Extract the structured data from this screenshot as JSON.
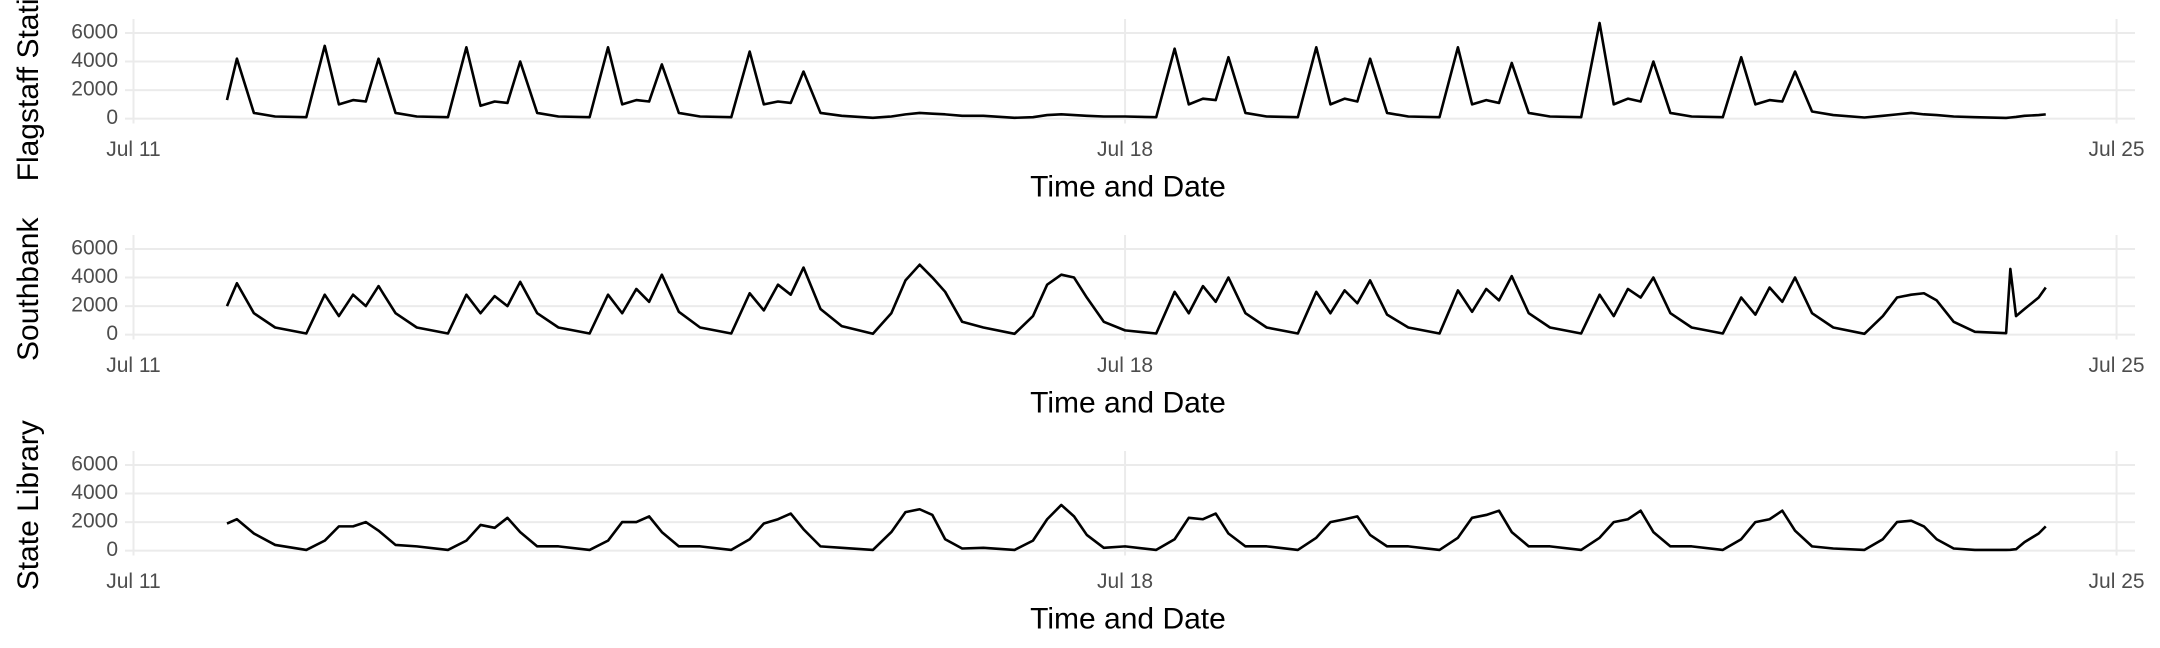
{
  "chart_data": [
    {
      "type": "line",
      "y_label": "Flagstaff Station",
      "x_label": "Time and Date",
      "color": "#000000",
      "grid": true,
      "xlim": [
        10.94,
        25.13
      ],
      "xticks": [
        {
          "value": 11,
          "label": "Jul 11"
        },
        {
          "value": 18,
          "label": "Jul 18"
        },
        {
          "value": 25,
          "label": "Jul 25"
        }
      ],
      "ylim": [
        -340,
        6980
      ],
      "yticks": [
        0,
        2000,
        4000,
        6000
      ],
      "x": [
        11.66,
        11.73,
        11.85,
        12,
        12.22,
        12.35,
        12.45,
        12.55,
        12.64,
        12.73,
        12.85,
        13,
        13.22,
        13.35,
        13.45,
        13.55,
        13.64,
        13.73,
        13.85,
        14,
        14.22,
        14.35,
        14.45,
        14.55,
        14.64,
        14.73,
        14.85,
        15,
        15.22,
        15.35,
        15.45,
        15.55,
        15.64,
        15.73,
        15.85,
        16,
        16.22,
        16.35,
        16.45,
        16.55,
        16.64,
        16.73,
        16.85,
        17,
        17.22,
        17.35,
        17.45,
        17.55,
        17.64,
        17.73,
        17.85,
        18,
        18.22,
        18.35,
        18.45,
        18.55,
        18.64,
        18.73,
        18.85,
        19,
        19.22,
        19.35,
        19.45,
        19.55,
        19.64,
        19.73,
        19.85,
        20,
        20.22,
        20.35,
        20.45,
        20.55,
        20.64,
        20.73,
        20.85,
        21,
        21.22,
        21.35,
        21.45,
        21.55,
        21.64,
        21.73,
        21.85,
        22,
        22.22,
        22.35,
        22.45,
        22.55,
        22.64,
        22.73,
        22.85,
        23,
        23.22,
        23.35,
        23.45,
        23.55,
        23.64,
        23.73,
        23.85,
        24,
        24.22,
        24.25,
        24.29,
        24.35,
        24.45,
        24.5
      ],
      "values": [
        1300,
        4200,
        400,
        150,
        100,
        5100,
        1000,
        1300,
        1200,
        4200,
        400,
        150,
        100,
        5000,
        900,
        1200,
        1100,
        4000,
        400,
        150,
        100,
        5000,
        1000,
        1300,
        1200,
        3800,
        400,
        150,
        100,
        4700,
        1000,
        1200,
        1100,
        3300,
        400,
        200,
        60,
        150,
        300,
        400,
        350,
        300,
        200,
        200,
        60,
        100,
        250,
        300,
        250,
        200,
        150,
        150,
        100,
        4900,
        1000,
        1400,
        1300,
        4300,
        400,
        150,
        100,
        5000,
        1000,
        1400,
        1200,
        4200,
        400,
        150,
        100,
        5000,
        1000,
        1300,
        1100,
        3900,
        400,
        150,
        100,
        6700,
        1000,
        1400,
        1200,
        4000,
        400,
        150,
        100,
        4300,
        1000,
        1300,
        1200,
        3300,
        500,
        250,
        80,
        200,
        300,
        400,
        300,
        250,
        150,
        100,
        50,
        80,
        120,
        200,
        250,
        300
      ]
    },
    {
      "type": "line",
      "y_label": "Southbank",
      "x_label": "Time and Date",
      "color": "#000000",
      "grid": true,
      "xlim": [
        10.94,
        25.13
      ],
      "xticks": [
        {
          "value": 11,
          "label": "Jul 11"
        },
        {
          "value": 18,
          "label": "Jul 18"
        },
        {
          "value": 25,
          "label": "Jul 25"
        }
      ],
      "ylim": [
        -340,
        6980
      ],
      "yticks": [
        0,
        2000,
        4000,
        6000
      ],
      "x": [
        11.66,
        11.73,
        11.85,
        12,
        12.22,
        12.35,
        12.45,
        12.55,
        12.64,
        12.73,
        12.85,
        13,
        13.22,
        13.35,
        13.45,
        13.55,
        13.64,
        13.73,
        13.85,
        14,
        14.22,
        14.35,
        14.45,
        14.55,
        14.64,
        14.73,
        14.85,
        15,
        15.22,
        15.35,
        15.45,
        15.55,
        15.64,
        15.73,
        15.85,
        16,
        16.22,
        16.35,
        16.45,
        16.55,
        16.64,
        16.73,
        16.85,
        17,
        17.22,
        17.35,
        17.45,
        17.55,
        17.64,
        17.73,
        17.85,
        18,
        18.22,
        18.35,
        18.45,
        18.55,
        18.64,
        18.73,
        18.85,
        19,
        19.22,
        19.35,
        19.45,
        19.55,
        19.64,
        19.73,
        19.85,
        20,
        20.22,
        20.35,
        20.45,
        20.55,
        20.64,
        20.73,
        20.85,
        21,
        21.22,
        21.35,
        21.45,
        21.55,
        21.64,
        21.73,
        21.85,
        22,
        22.22,
        22.35,
        22.45,
        22.55,
        22.64,
        22.73,
        22.85,
        23,
        23.22,
        23.35,
        23.45,
        23.55,
        23.64,
        23.73,
        23.85,
        24,
        24.22,
        24.25,
        24.29,
        24.35,
        24.45,
        24.5
      ],
      "values": [
        2000,
        3600,
        1500,
        500,
        80,
        2800,
        1300,
        2800,
        2000,
        3400,
        1500,
        500,
        80,
        2800,
        1500,
        2700,
        2000,
        3700,
        1500,
        500,
        80,
        2800,
        1500,
        3200,
        2300,
        4200,
        1600,
        500,
        80,
        2900,
        1700,
        3500,
        2800,
        4700,
        1800,
        600,
        60,
        1500,
        3800,
        4900,
        4000,
        3000,
        900,
        500,
        60,
        1300,
        3500,
        4200,
        4000,
        2600,
        900,
        300,
        80,
        3000,
        1500,
        3400,
        2300,
        4000,
        1500,
        500,
        80,
        3000,
        1500,
        3100,
        2200,
        3800,
        1400,
        500,
        80,
        3100,
        1600,
        3200,
        2400,
        4100,
        1500,
        500,
        80,
        2800,
        1300,
        3200,
        2600,
        4000,
        1500,
        500,
        80,
        2600,
        1400,
        3300,
        2300,
        4000,
        1500,
        500,
        60,
        1300,
        2600,
        2800,
        2900,
        2400,
        900,
        200,
        100,
        4600,
        1300,
        1800,
        2600,
        3300
      ]
    },
    {
      "type": "line",
      "y_label": "State Library",
      "x_label": "Time and Date",
      "color": "#000000",
      "grid": true,
      "xlim": [
        10.94,
        25.13
      ],
      "xticks": [
        {
          "value": 11,
          "label": "Jul 11"
        },
        {
          "value": 18,
          "label": "Jul 18"
        },
        {
          "value": 25,
          "label": "Jul 25"
        }
      ],
      "ylim": [
        -340,
        6980
      ],
      "yticks": [
        0,
        2000,
        4000,
        6000
      ],
      "x": [
        11.66,
        11.73,
        11.85,
        12,
        12.22,
        12.35,
        12.45,
        12.55,
        12.64,
        12.73,
        12.85,
        13,
        13.22,
        13.35,
        13.45,
        13.55,
        13.64,
        13.73,
        13.85,
        14,
        14.22,
        14.35,
        14.45,
        14.55,
        14.64,
        14.73,
        14.85,
        15,
        15.22,
        15.35,
        15.45,
        15.55,
        15.64,
        15.73,
        15.85,
        16,
        16.22,
        16.35,
        16.45,
        16.55,
        16.64,
        16.73,
        16.85,
        17,
        17.22,
        17.35,
        17.45,
        17.55,
        17.64,
        17.73,
        17.85,
        18,
        18.22,
        18.35,
        18.45,
        18.55,
        18.64,
        18.73,
        18.85,
        19,
        19.22,
        19.35,
        19.45,
        19.55,
        19.64,
        19.73,
        19.85,
        20,
        20.22,
        20.35,
        20.45,
        20.55,
        20.64,
        20.73,
        20.85,
        21,
        21.22,
        21.35,
        21.45,
        21.55,
        21.64,
        21.73,
        21.85,
        22,
        22.22,
        22.35,
        22.45,
        22.55,
        22.64,
        22.73,
        22.85,
        23,
        23.22,
        23.35,
        23.45,
        23.55,
        23.64,
        23.73,
        23.85,
        24,
        24.22,
        24.25,
        24.29,
        24.35,
        24.45,
        24.5
      ],
      "values": [
        1900,
        2200,
        1200,
        400,
        50,
        700,
        1700,
        1700,
        2000,
        1400,
        400,
        300,
        50,
        700,
        1800,
        1600,
        2300,
        1300,
        300,
        300,
        50,
        700,
        2000,
        2000,
        2400,
        1300,
        300,
        300,
        50,
        800,
        1900,
        2200,
        2600,
        1500,
        300,
        200,
        50,
        1300,
        2700,
        2900,
        2500,
        800,
        150,
        200,
        50,
        700,
        2200,
        3200,
        2400,
        1100,
        200,
        300,
        50,
        800,
        2300,
        2200,
        2600,
        1200,
        300,
        300,
        50,
        900,
        2000,
        2200,
        2400,
        1100,
        300,
        300,
        50,
        900,
        2300,
        2500,
        2800,
        1300,
        300,
        300,
        50,
        900,
        2000,
        2200,
        2800,
        1300,
        300,
        300,
        50,
        800,
        2000,
        2200,
        2800,
        1400,
        300,
        150,
        50,
        800,
        2000,
        2100,
        1700,
        800,
        150,
        50,
        50,
        60,
        100,
        600,
        1200,
        1700
      ]
    }
  ]
}
